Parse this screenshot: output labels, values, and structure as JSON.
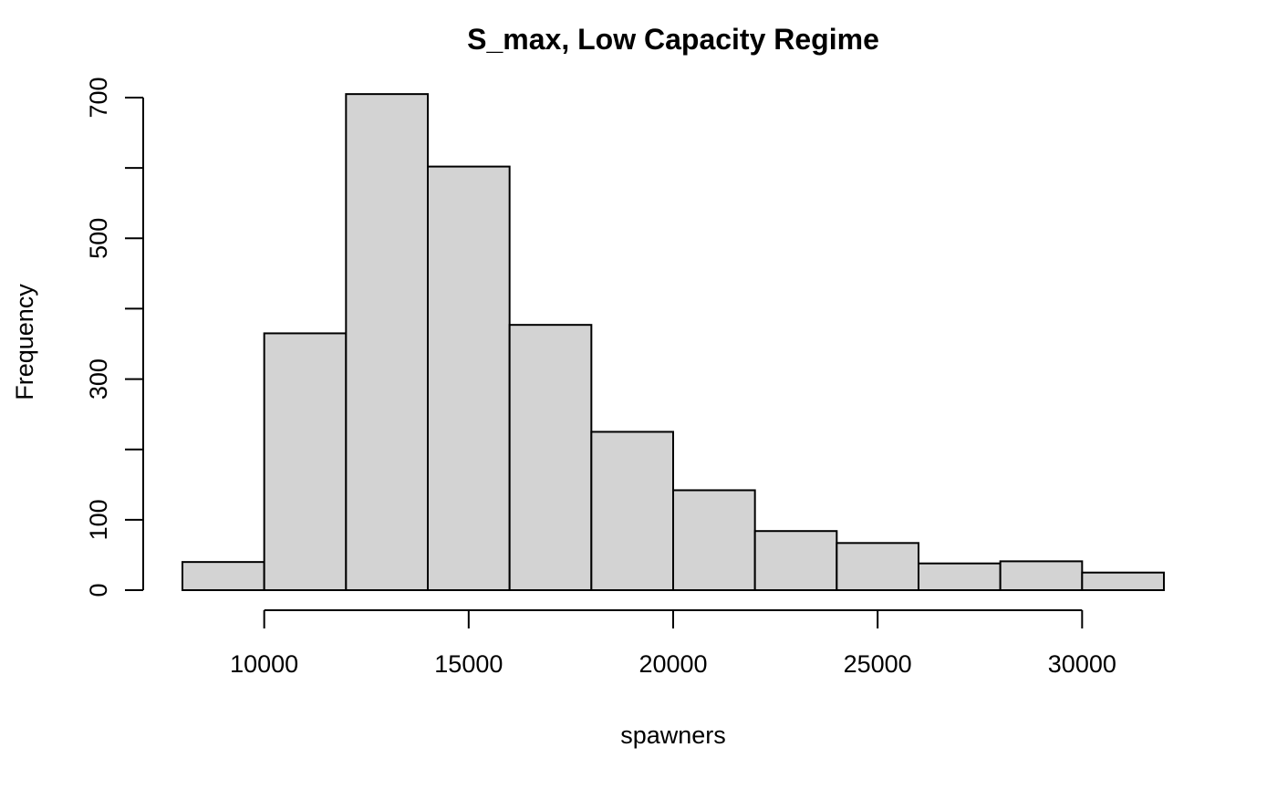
{
  "chart_data": {
    "type": "bar",
    "subtype": "histogram",
    "title": "S_max, Low Capacity Regime",
    "xlabel": "spawners",
    "ylabel": "Frequency",
    "bin_edges": [
      8000,
      10000,
      12000,
      14000,
      16000,
      18000,
      20000,
      22000,
      24000,
      26000,
      28000,
      30000,
      32000
    ],
    "values": [
      40,
      365,
      705,
      602,
      377,
      225,
      142,
      84,
      67,
      38,
      41,
      25
    ],
    "xlim": [
      8000,
      32000
    ],
    "ylim": [
      0,
      700
    ],
    "x_ticks": [
      10000,
      15000,
      20000,
      25000,
      30000
    ],
    "x_tick_labels": [
      "10000",
      "15000",
      "20000",
      "25000",
      "30000"
    ],
    "y_ticks": [
      0,
      100,
      200,
      300,
      400,
      500,
      600,
      700
    ],
    "y_tick_labels": [
      "0",
      "100",
      "300",
      "500",
      "700"
    ],
    "y_labeled_ticks": [
      0,
      100,
      300,
      500,
      700
    ],
    "bar_fill": "#d3d3d3",
    "bar_stroke": "#000000",
    "grid": false,
    "legend": "none"
  }
}
